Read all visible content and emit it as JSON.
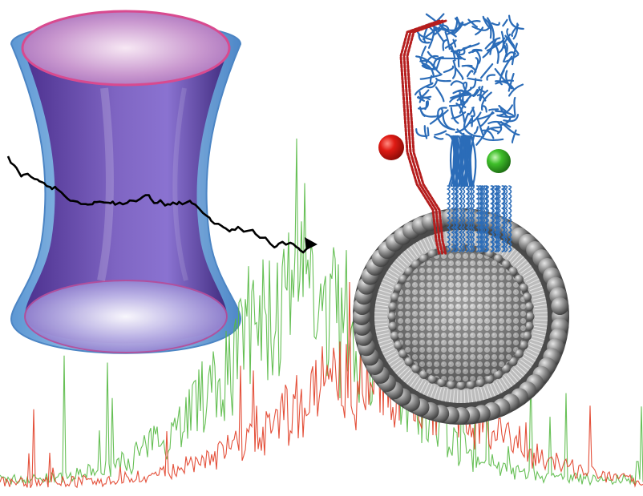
{
  "image": {
    "kind": "scientific illustration",
    "colors": {
      "background": "#ffffff",
      "focus_outer": "#7fb1df",
      "focus_inner": "#6a3d9a",
      "focus_rim": "#d84a8f",
      "trajectory": "#000000",
      "trace_green": "#57b944",
      "trace_red": "#e3472f",
      "donor_bead": "#e01b14",
      "acceptor_bead": "#3fbf2a",
      "protein_red": "#b51e1e",
      "protein_blue": "#2b6cb8",
      "vesicle_lipid": "#7a7a7a"
    },
    "objects": [
      {
        "name": "confocal-focal-volume",
        "icon": "hourglass-shaped transparent volume"
      },
      {
        "name": "diffusion-trajectory",
        "icon": "black random-walk arrow"
      },
      {
        "name": "green-fluorescence-trace",
        "icon": "noisy photon burst trace"
      },
      {
        "name": "red-fluorescence-trace",
        "icon": "noisy photon burst trace"
      },
      {
        "name": "protein-complex",
        "icon": "ribbon protein structure"
      },
      {
        "name": "lipid-vesicle",
        "icon": "cutaway lipid bilayer sphere"
      }
    ]
  }
}
